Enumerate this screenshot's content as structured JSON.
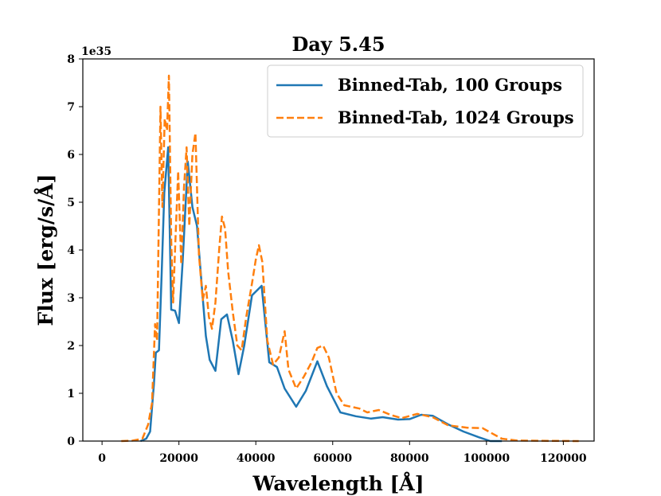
{
  "chart_data": {
    "type": "line",
    "title": "Day 5.45",
    "xlabel": "Wavelength [Å]",
    "ylabel": "Flux [erg/s/Å]",
    "y_offset_label": "1e35",
    "xlim": [
      -5000,
      128000
    ],
    "ylim": [
      0,
      8
    ],
    "xticks": [
      0,
      20000,
      40000,
      60000,
      80000,
      100000,
      120000
    ],
    "xtick_labels": [
      "0",
      "20000",
      "40000",
      "60000",
      "80000",
      "100000",
      "120000"
    ],
    "yticks": [
      0,
      1,
      2,
      3,
      4,
      5,
      6,
      7,
      8
    ],
    "ytick_labels": [
      "0",
      "1",
      "2",
      "3",
      "4",
      "5",
      "6",
      "7",
      "8"
    ],
    "legend_position": "top-right",
    "series": [
      {
        "name": "Binned-Tab, 100 Groups",
        "style": "solid",
        "color": "#1f77b4",
        "points": [
          [
            10000,
            0
          ],
          [
            11500,
            0.05
          ],
          [
            12500,
            0.2
          ],
          [
            13500,
            1.2
          ],
          [
            14000,
            1.85
          ],
          [
            14800,
            1.9
          ],
          [
            15500,
            3.5
          ],
          [
            16200,
            5.2
          ],
          [
            17200,
            6.15
          ],
          [
            18000,
            2.75
          ],
          [
            19000,
            2.73
          ],
          [
            20000,
            2.47
          ],
          [
            21000,
            3.8
          ],
          [
            22300,
            5.85
          ],
          [
            23500,
            4.9
          ],
          [
            24700,
            4.5
          ],
          [
            26000,
            3.2
          ],
          [
            27000,
            2.2
          ],
          [
            28000,
            1.7
          ],
          [
            29500,
            1.47
          ],
          [
            31000,
            2.55
          ],
          [
            32500,
            2.65
          ],
          [
            34000,
            2.1
          ],
          [
            35500,
            1.4
          ],
          [
            37000,
            2.0
          ],
          [
            39000,
            3.05
          ],
          [
            41500,
            3.25
          ],
          [
            43500,
            1.65
          ],
          [
            45500,
            1.55
          ],
          [
            47500,
            1.1
          ],
          [
            50500,
            0.72
          ],
          [
            53000,
            1.05
          ],
          [
            56000,
            1.67
          ],
          [
            58500,
            1.15
          ],
          [
            62000,
            0.6
          ],
          [
            66000,
            0.52
          ],
          [
            70000,
            0.47
          ],
          [
            73000,
            0.5
          ],
          [
            77000,
            0.45
          ],
          [
            80000,
            0.46
          ],
          [
            83000,
            0.55
          ],
          [
            86000,
            0.53
          ],
          [
            90000,
            0.35
          ],
          [
            94000,
            0.2
          ],
          [
            98000,
            0.08
          ],
          [
            101000,
            0
          ],
          [
            104000,
            0
          ]
        ]
      },
      {
        "name": "Binned-Tab, 1024 Groups",
        "style": "dashed",
        "color": "#ff7f0e",
        "points": [
          [
            5000,
            0
          ],
          [
            8000,
            0.01
          ],
          [
            10500,
            0.05
          ],
          [
            12000,
            0.35
          ],
          [
            13000,
            0.8
          ],
          [
            13800,
            2.45
          ],
          [
            14300,
            2.1
          ],
          [
            15200,
            7.0
          ],
          [
            15700,
            4.9
          ],
          [
            16300,
            6.75
          ],
          [
            16900,
            6.5
          ],
          [
            17400,
            7.65
          ],
          [
            18000,
            4.2
          ],
          [
            18500,
            2.9
          ],
          [
            19000,
            4.0
          ],
          [
            19800,
            5.65
          ],
          [
            20600,
            3.7
          ],
          [
            21300,
            5.3
          ],
          [
            22000,
            6.15
          ],
          [
            22700,
            4.5
          ],
          [
            23500,
            6.0
          ],
          [
            24300,
            6.45
          ],
          [
            25200,
            3.9
          ],
          [
            26200,
            2.95
          ],
          [
            27000,
            3.25
          ],
          [
            27800,
            2.6
          ],
          [
            28600,
            2.35
          ],
          [
            29500,
            2.9
          ],
          [
            30500,
            4.05
          ],
          [
            31200,
            4.7
          ],
          [
            32000,
            4.45
          ],
          [
            32800,
            3.55
          ],
          [
            34000,
            2.7
          ],
          [
            35200,
            2.0
          ],
          [
            36300,
            1.9
          ],
          [
            37500,
            2.6
          ],
          [
            39000,
            3.3
          ],
          [
            40000,
            3.8
          ],
          [
            40800,
            4.1
          ],
          [
            41700,
            3.75
          ],
          [
            43000,
            2.1
          ],
          [
            44500,
            1.6
          ],
          [
            46000,
            1.75
          ],
          [
            47500,
            2.3
          ],
          [
            48500,
            1.5
          ],
          [
            50500,
            1.1
          ],
          [
            52500,
            1.35
          ],
          [
            54500,
            1.65
          ],
          [
            56000,
            1.95
          ],
          [
            57500,
            2.0
          ],
          [
            59000,
            1.75
          ],
          [
            61000,
            1.0
          ],
          [
            63000,
            0.75
          ],
          [
            67000,
            0.68
          ],
          [
            69000,
            0.6
          ],
          [
            72000,
            0.65
          ],
          [
            75000,
            0.55
          ],
          [
            78000,
            0.48
          ],
          [
            82000,
            0.57
          ],
          [
            86000,
            0.5
          ],
          [
            90000,
            0.33
          ],
          [
            95000,
            0.28
          ],
          [
            99000,
            0.27
          ],
          [
            101000,
            0.18
          ],
          [
            104000,
            0.05
          ],
          [
            108000,
            0.01
          ],
          [
            124000,
            0
          ]
        ]
      }
    ]
  }
}
